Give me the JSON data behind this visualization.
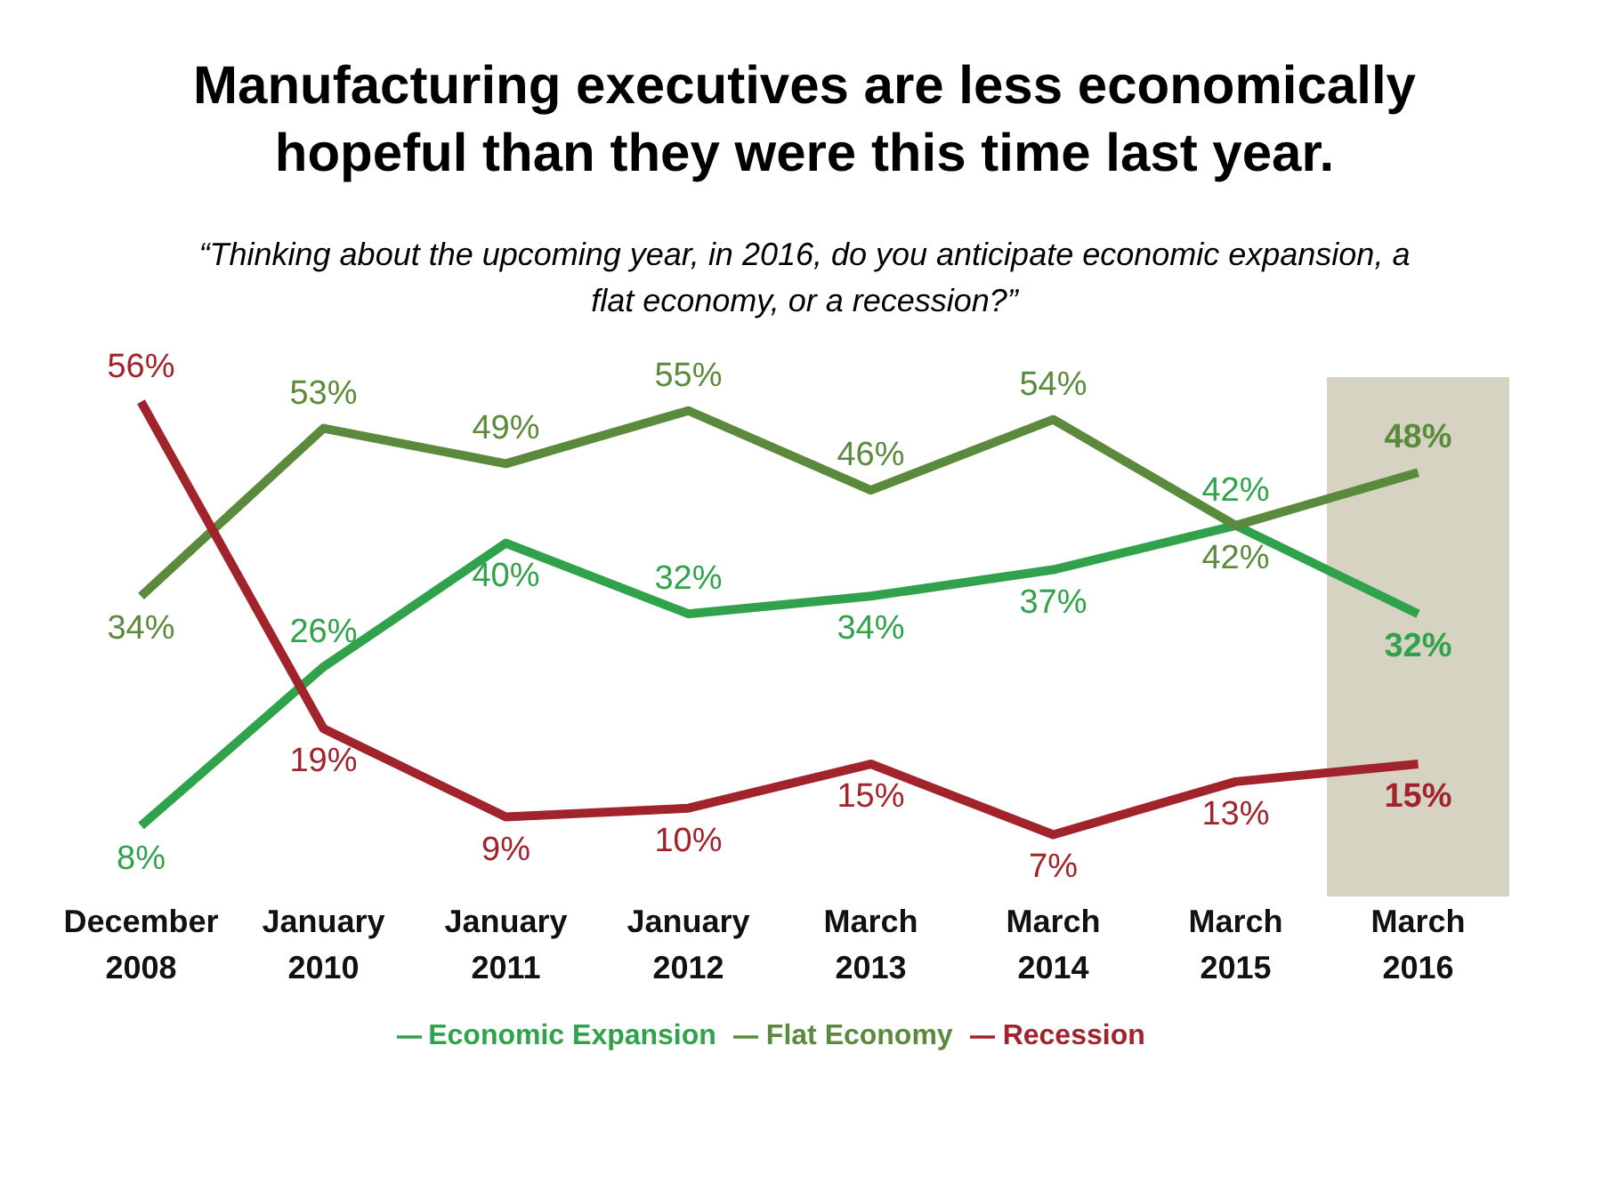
{
  "chart_data": {
    "type": "line",
    "title": "Manufacturing executives are less economically hopeful than they were this time last year.",
    "subtitle": "“Thinking about the upcoming year, in 2016, do you anticipate economic expansion, a flat economy, or a recession?”",
    "categories": [
      "December 2008",
      "January 2010",
      "January 2011",
      "January 2012",
      "March 2013",
      "March 2014",
      "March 2015",
      "March 2016"
    ],
    "series": [
      {
        "name": "Economic Expansion",
        "color": "#30a24b",
        "values": [
          8,
          26,
          40,
          32,
          34,
          37,
          42,
          32
        ],
        "value_labels": [
          "8%",
          "26%",
          "40%",
          "32%",
          "34%",
          "37%",
          "42%",
          "32%"
        ]
      },
      {
        "name": "Flat Economy",
        "color": "#5b8a3c",
        "values": [
          34,
          53,
          49,
          55,
          46,
          54,
          42,
          48
        ],
        "value_labels": [
          "34%",
          "53%",
          "49%",
          "55%",
          "46%",
          "54%",
          "42%",
          "48%"
        ]
      },
      {
        "name": "Recession",
        "color": "#a1232b",
        "values": [
          56,
          19,
          9,
          10,
          15,
          7,
          13,
          15
        ],
        "value_labels": [
          "56%",
          "19%",
          "9%",
          "10%",
          "15%",
          "7%",
          "13%",
          "15%"
        ]
      }
    ],
    "bands": [
      {
        "axis": "x",
        "from": "March 2016",
        "to": "March 2016",
        "color": "#d6d3c3"
      }
    ],
    "legend": "bottom",
    "grid": false,
    "marker": "none",
    "line_style": "solid"
  }
}
